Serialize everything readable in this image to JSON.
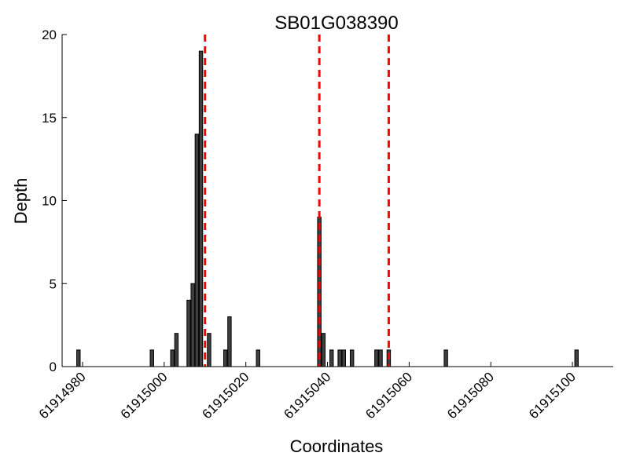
{
  "chart_data": {
    "type": "bar",
    "title": "SB01G038390",
    "xlabel": "Coordinates",
    "ylabel": "Depth",
    "xlim": [
      61914975,
      61915110
    ],
    "ylim": [
      0,
      20
    ],
    "xticks": [
      61914980,
      61915000,
      61915020,
      61915040,
      61915060,
      61915080,
      61915100
    ],
    "yticks": [
      0,
      5,
      10,
      15,
      20
    ],
    "grid": false,
    "bar_color": "#404040",
    "vline_color": "#ff0000",
    "vlines": [
      61915010,
      61915038,
      61915055
    ],
    "x": [
      61914979,
      61914997,
      61915002,
      61915003,
      61915006,
      61915007,
      61915008,
      61915009,
      61915011,
      61915015,
      61915016,
      61915023,
      61915038,
      61915039,
      61915041,
      61915043,
      61915044,
      61915046,
      61915052,
      61915053,
      61915055,
      61915069,
      61915101
    ],
    "values": [
      1,
      1,
      1,
      2,
      4,
      5,
      14,
      19,
      2,
      1,
      3,
      1,
      9,
      2,
      1,
      1,
      1,
      1,
      1,
      1,
      1,
      1,
      1
    ]
  }
}
